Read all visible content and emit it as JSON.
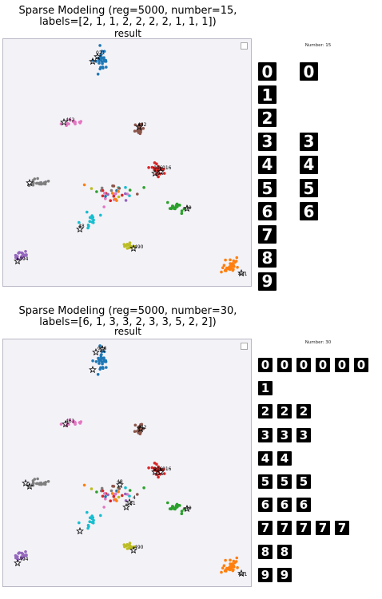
{
  "charts": [
    {
      "title_line1": "Sparse Modeling (reg=5000, number=15,",
      "title_line2": "labels=[2, 1, 1, 2, 2, 2, 2, 1, 1, 1])",
      "subtitle": "result",
      "panel_title": "Number: 15",
      "digit_counts": [
        2,
        1,
        1,
        2,
        2,
        2,
        2,
        1,
        1,
        1
      ],
      "annotations": [
        "021",
        "462",
        "442",
        "006",
        "016",
        "48",
        "49",
        "490",
        "401",
        "494"
      ]
    },
    {
      "title_line1": "Sparse Modeling (reg=5000, number=30,",
      "title_line2": "labels=[6, 1, 3, 3, 2, 3, 3, 5, 2, 2])",
      "subtitle": "result",
      "panel_title": "Number: 30",
      "digit_counts": [
        6,
        1,
        3,
        3,
        2,
        3,
        3,
        5,
        2,
        2
      ],
      "annotations": [
        "066",
        "461",
        "442",
        "006",
        "016",
        "48",
        "4",
        "61",
        "49",
        "490",
        "401",
        "494"
      ]
    }
  ],
  "chart_data": [
    {
      "type": "scatter",
      "title": "Sparse Modeling (reg=5000, number=15, labels=[2, 1, 1, 2, 2, 2, 2, 1, 1, 1])",
      "subtitle": "result",
      "selected_per_digit": [
        2,
        1,
        1,
        2,
        2,
        2,
        2,
        1,
        1,
        1
      ],
      "digit_classes": [
        0,
        1,
        2,
        3,
        4,
        5,
        6,
        7,
        8,
        9
      ],
      "class_colors": [
        "#1f77b4",
        "#ff7f0e",
        "#2ca02c",
        "#d62728",
        "#9467bd",
        "#8c564b",
        "#e377c2",
        "#7f7f7f",
        "#bcbd22",
        "#17becf"
      ],
      "grid": false,
      "axes_visible": false
    },
    {
      "type": "scatter",
      "title": "Sparse Modeling (reg=5000, number=30, labels=[6, 1, 3, 3, 2, 3, 3, 5, 2, 2])",
      "subtitle": "result",
      "selected_per_digit": [
        6,
        1,
        3,
        3,
        2,
        3,
        3,
        5,
        2,
        2
      ],
      "digit_classes": [
        0,
        1,
        2,
        3,
        4,
        5,
        6,
        7,
        8,
        9
      ],
      "class_colors": [
        "#1f77b4",
        "#ff7f0e",
        "#2ca02c",
        "#d62728",
        "#9467bd",
        "#8c564b",
        "#e377c2",
        "#7f7f7f",
        "#bcbd22",
        "#17becf"
      ],
      "grid": false,
      "axes_visible": false
    }
  ]
}
